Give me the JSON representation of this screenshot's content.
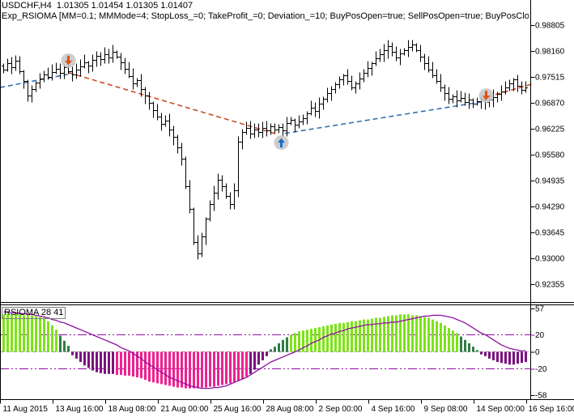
{
  "window": {
    "title_line": "USDCHF,H4  1.01305 1.01454 1.01305 1.01407",
    "ea_params_line": "Exp_RSIOMA [MM=0.1; MMMode=4; StopLoss_=0; TakeProfit_=0; Deviation_=10; BuyPosOpen=true; SellPosOpen=true; BuyPosClose=true; SellPosClo"
  },
  "colors": {
    "bar": "#000000",
    "trend_sell": "#cc4a22",
    "trend_buy": "#2e73b8",
    "marker_bg": "#c6c6c6",
    "arrow_sell": "#e25017",
    "arrow_buy": "#1b6ecc",
    "hist_up_strong": "#7de317",
    "hist_up_weak": "#2e7d46",
    "hist_dn_strong": "#ef2190",
    "hist_dn_weak": "#7a127f",
    "ma": "#8e10a0",
    "level": "#8e10a0",
    "zero_level": "#9a9a9a",
    "axis": "#000000"
  },
  "chart_data": [
    {
      "type": "ohlc-bar",
      "symbol": "USDCHF",
      "timeframe": "H4",
      "y_axis": {
        "labels": [
          "0.98805",
          "0.98160",
          "0.97515",
          "0.96870",
          "0.96225",
          "0.95580",
          "0.94935",
          "0.94290",
          "0.93645",
          "0.93000",
          "0.92355"
        ],
        "max": 0.98805,
        "min": 0.92355,
        "step": 0.00645
      },
      "x_axis": {
        "labels": [
          "11 Aug 2015",
          "13 Aug 16:00",
          "18 Aug 08:00",
          "21 Aug 00:00",
          "25 Aug 16:00",
          "28 Aug 08:00",
          "2 Sep 00:00",
          "4 Sep 16:00",
          "9 Sep 08:00",
          "14 Sep 00:00",
          "16 Sep 16:00"
        ]
      },
      "closes": [
        0.977,
        0.9786,
        0.9776,
        0.9792,
        0.9766,
        0.9741,
        0.9705,
        0.9721,
        0.9737,
        0.9747,
        0.9758,
        0.9752,
        0.9764,
        0.9772,
        0.9762,
        0.9776,
        0.9766,
        0.9758,
        0.977,
        0.9778,
        0.9788,
        0.978,
        0.9794,
        0.9804,
        0.9796,
        0.9808,
        0.98,
        0.9814,
        0.9802,
        0.9788,
        0.9772,
        0.9754,
        0.9735,
        0.9743,
        0.9721,
        0.9705,
        0.9687,
        0.9669,
        0.9653,
        0.9635,
        0.9643,
        0.962,
        0.9602,
        0.9576,
        0.9548,
        0.9479,
        0.9423,
        0.934,
        0.9312,
        0.9355,
        0.9399,
        0.9435,
        0.9463,
        0.9496,
        0.9479,
        0.9455,
        0.9435,
        0.9469,
        0.959,
        0.9614,
        0.9625,
        0.961,
        0.962,
        0.9614,
        0.9625,
        0.9618,
        0.9629,
        0.962,
        0.9627,
        0.9618,
        0.9637,
        0.9645,
        0.9633,
        0.9641,
        0.9649,
        0.9661,
        0.9675,
        0.9667,
        0.9685,
        0.9697,
        0.9711,
        0.9721,
        0.9733,
        0.9745,
        0.9756,
        0.9741,
        0.9725,
        0.9735,
        0.9747,
        0.9762,
        0.9774,
        0.9786,
        0.9798,
        0.9808,
        0.9818,
        0.9828,
        0.9814,
        0.98,
        0.981,
        0.9818,
        0.9826,
        0.9832,
        0.9818,
        0.9802,
        0.9786,
        0.977,
        0.9756,
        0.9741,
        0.9725,
        0.9711,
        0.9697,
        0.9703,
        0.9693,
        0.9699,
        0.9689,
        0.9695,
        0.9685,
        0.9691,
        0.9697,
        0.9689,
        0.9695,
        0.9701,
        0.9709,
        0.9715,
        0.9725,
        0.9735,
        0.9745,
        0.9729,
        0.9719,
        0.9725
      ],
      "trade_markers": [
        {
          "bar": 16,
          "price": 0.9792,
          "type": "sell"
        },
        {
          "bar": 68.6,
          "price": 0.9588,
          "type": "buy"
        },
        {
          "bar": 119.2,
          "price": 0.9705,
          "type": "sell"
        }
      ],
      "trade_lines": [
        {
          "b1": -0.9,
          "p1": 0.9725,
          "b2": 15.8,
          "p2": 0.9758,
          "color": "trend_buy"
        },
        {
          "b1": 16.1,
          "p1": 0.9762,
          "b2": 67.9,
          "p2": 0.9608,
          "color": "trend_sell"
        },
        {
          "b1": 69.5,
          "p1": 0.9611,
          "b2": 118.5,
          "p2": 0.969,
          "color": "trend_buy"
        },
        {
          "b1": 119.6,
          "p1": 0.9702,
          "b2": 130.6,
          "p2": 0.9734,
          "color": "trend_sell"
        }
      ]
    },
    {
      "type": "bar",
      "title": "RSIOMA 28 41",
      "ylim": [
        -58,
        57
      ],
      "y_ticks": [
        57,
        20,
        0,
        -20,
        -58
      ],
      "levels": [
        20,
        0,
        -20
      ],
      "histogram": [
        44,
        45,
        44,
        45,
        44,
        43,
        44,
        43,
        42,
        41,
        40,
        36,
        31,
        26,
        19,
        13,
        7,
        -4,
        -8,
        -12,
        -16,
        -19,
        -22,
        -24,
        -25,
        -26,
        -26,
        -26,
        -27,
        -27,
        -28,
        -28,
        -29,
        -30,
        -31,
        -33,
        -35,
        -36,
        -37,
        -38,
        -39,
        -40,
        -41,
        -42,
        -42,
        -43,
        -43,
        -43,
        -43,
        -42,
        -42,
        -41,
        -41,
        -40,
        -39,
        -38,
        -37,
        -36,
        -34,
        -32,
        -29,
        -26,
        -21,
        -15,
        -10,
        -5,
        3,
        6,
        10,
        14,
        17,
        20,
        22,
        24,
        25,
        26,
        27,
        28,
        29,
        30,
        31,
        32,
        33,
        34,
        34,
        35,
        36,
        36,
        37,
        38,
        38,
        39,
        40,
        40,
        41,
        42,
        43,
        43,
        44,
        44,
        44,
        43,
        43,
        42,
        41,
        40,
        38,
        36,
        34,
        31,
        28,
        25,
        22,
        18,
        14,
        10,
        6,
        2,
        -3,
        -5,
        -8,
        -10,
        -12,
        -13,
        -14,
        -15,
        -15,
        -14,
        -13,
        -12
      ],
      "ma_line": [
        47,
        47,
        46,
        46,
        45,
        45,
        44,
        44,
        43,
        42,
        41,
        40,
        38,
        37,
        35,
        34,
        32,
        30,
        28,
        26,
        24,
        22,
        20,
        18,
        16,
        14,
        12,
        10,
        8,
        5,
        3,
        1,
        -2,
        -5,
        -8,
        -12,
        -15,
        -18,
        -21,
        -24,
        -27,
        -30,
        -32,
        -34,
        -36,
        -38,
        -40,
        -41,
        -42,
        -43,
        -43,
        -43,
        -42,
        -42,
        -41,
        -40,
        -38,
        -36,
        -34,
        -32,
        -30,
        -27,
        -24,
        -21,
        -18,
        -15,
        -12,
        -10,
        -8,
        -6,
        -4,
        -2,
        0,
        2,
        5,
        7,
        10,
        12,
        14,
        17,
        19,
        21,
        22,
        24,
        25,
        27,
        28,
        29,
        30,
        31,
        32,
        32,
        33,
        33,
        34,
        34,
        35,
        35,
        36,
        37,
        38,
        39,
        40,
        41,
        42,
        42,
        43,
        43,
        43,
        42,
        41,
        40,
        38,
        36,
        34,
        31,
        28,
        25,
        22,
        20,
        17,
        14,
        11,
        8,
        6,
        4,
        3,
        2,
        1,
        1
      ]
    }
  ]
}
